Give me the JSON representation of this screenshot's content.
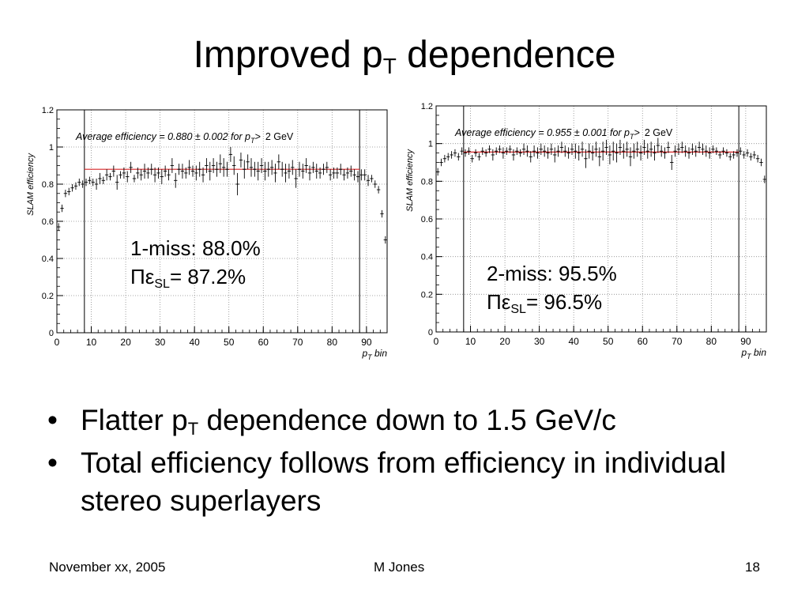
{
  "slide": {
    "title_main": "Improved p",
    "title_sub": "T",
    "title_rest": " dependence",
    "bullets": [
      {
        "pre": "Flatter p",
        "sub": "T",
        "post": " dependence down to 1.5 GeV/c"
      },
      {
        "pre": "Total efficiency follows from efficiency in individual stereo superlayers",
        "sub": "",
        "post": ""
      }
    ],
    "bullet_glyph": "•",
    "footer": {
      "date": "November xx, 2005",
      "author": "M Jones",
      "page": "18"
    }
  },
  "overlays": [
    {
      "line1": "1-miss: 88.0%",
      "line2_pre": "Πε",
      "line2_sub": "SL",
      "line2_post": "= 87.2%"
    },
    {
      "line1": "2-miss: 95.5%",
      "line2_pre": "Πε",
      "line2_sub": "SL",
      "line2_post": "= 96.5%"
    }
  ],
  "colors": {
    "fit_line": "#d62728",
    "points": "#000000",
    "grid": "#8a8a8a"
  },
  "chart_data": [
    {
      "type": "scatter",
      "ylabel": "SLAM efficiency",
      "xlabel": "p_T bin",
      "xlim": [
        0,
        96
      ],
      "ylim": [
        0,
        1.2
      ],
      "xticks": [
        0,
        10,
        20,
        30,
        40,
        50,
        60,
        70,
        80,
        90
      ],
      "yticks": [
        0,
        0.2,
        0.4,
        0.6,
        0.8,
        1,
        1.2
      ],
      "grid": true,
      "annotation": {
        "pre": "Average efficiency = 0.880 ± 0.002 for p",
        "sub": "T",
        "post": ">",
        "tail": "2 GeV"
      },
      "fit": {
        "value": 0.88,
        "x_range": [
          8,
          88
        ]
      },
      "vlines": [
        8,
        88
      ],
      "points": {
        "x": [
          0,
          1,
          2,
          3,
          4,
          5,
          6,
          7,
          8,
          9,
          10,
          11,
          12,
          13,
          14,
          15,
          16,
          17,
          18,
          19,
          20,
          21,
          22,
          23,
          24,
          25,
          26,
          27,
          28,
          29,
          30,
          31,
          32,
          33,
          34,
          35,
          36,
          37,
          38,
          39,
          40,
          41,
          42,
          43,
          44,
          45,
          46,
          47,
          48,
          49,
          50,
          51,
          52,
          53,
          54,
          55,
          56,
          57,
          58,
          59,
          60,
          61,
          62,
          63,
          64,
          65,
          66,
          67,
          68,
          69,
          70,
          71,
          72,
          73,
          74,
          75,
          76,
          77,
          78,
          79,
          80,
          81,
          82,
          83,
          84,
          85,
          86,
          87,
          88,
          89,
          90,
          91,
          92,
          93,
          94,
          95
        ],
        "y": [
          0.57,
          0.67,
          0.75,
          0.76,
          0.78,
          0.79,
          0.81,
          0.8,
          0.81,
          0.82,
          0.81,
          0.8,
          0.83,
          0.82,
          0.85,
          0.84,
          0.87,
          0.81,
          0.85,
          0.86,
          0.84,
          0.89,
          0.83,
          0.86,
          0.85,
          0.87,
          0.86,
          0.88,
          0.85,
          0.86,
          0.84,
          0.87,
          0.85,
          0.9,
          0.82,
          0.88,
          0.87,
          0.86,
          0.89,
          0.87,
          0.86,
          0.88,
          0.85,
          0.9,
          0.87,
          0.9,
          0.88,
          0.91,
          0.89,
          0.88,
          0.96,
          0.9,
          0.8,
          0.93,
          0.88,
          0.92,
          0.89,
          0.88,
          0.87,
          0.9,
          0.87,
          0.88,
          0.89,
          0.86,
          0.92,
          0.88,
          0.86,
          0.87,
          0.89,
          0.83,
          0.88,
          0.87,
          0.9,
          0.86,
          0.89,
          0.87,
          0.86,
          0.88,
          0.89,
          0.85,
          0.86,
          0.86,
          0.88,
          0.85,
          0.86,
          0.87,
          0.85,
          0.84,
          0.85,
          0.85,
          0.82,
          0.83,
          0.8,
          0.77,
          0.64,
          0.5
        ],
        "err": [
          0.02,
          0.02,
          0.02,
          0.02,
          0.02,
          0.02,
          0.02,
          0.02,
          0.02,
          0.02,
          0.02,
          0.03,
          0.03,
          0.02,
          0.03,
          0.02,
          0.03,
          0.04,
          0.02,
          0.03,
          0.03,
          0.03,
          0.02,
          0.03,
          0.03,
          0.04,
          0.03,
          0.03,
          0.04,
          0.03,
          0.04,
          0.03,
          0.03,
          0.04,
          0.04,
          0.03,
          0.04,
          0.03,
          0.04,
          0.03,
          0.04,
          0.04,
          0.04,
          0.04,
          0.05,
          0.04,
          0.04,
          0.05,
          0.05,
          0.04,
          0.04,
          0.05,
          0.06,
          0.04,
          0.05,
          0.04,
          0.05,
          0.04,
          0.05,
          0.04,
          0.05,
          0.04,
          0.04,
          0.05,
          0.04,
          0.04,
          0.05,
          0.04,
          0.04,
          0.05,
          0.04,
          0.04,
          0.04,
          0.04,
          0.03,
          0.04,
          0.03,
          0.03,
          0.03,
          0.03,
          0.03,
          0.03,
          0.03,
          0.03,
          0.03,
          0.03,
          0.03,
          0.03,
          0.03,
          0.03,
          0.03,
          0.02,
          0.02,
          0.02,
          0.02,
          0.02
        ]
      }
    },
    {
      "type": "scatter",
      "ylabel": "SLAM efficiency",
      "xlabel": "p_T bin",
      "xlim": [
        0,
        96
      ],
      "ylim": [
        0,
        1.2
      ],
      "xticks": [
        0,
        10,
        20,
        30,
        40,
        50,
        60,
        70,
        80,
        90
      ],
      "yticks": [
        0,
        0.2,
        0.4,
        0.6,
        0.8,
        1,
        1.2
      ],
      "grid": true,
      "annotation": {
        "pre": "Average efficiency = 0.955 ± 0.001 for p",
        "sub": "T",
        "post": ">",
        "tail": "2 GeV"
      },
      "fit": {
        "value": 0.955,
        "x_range": [
          8,
          88
        ]
      },
      "vlines": [
        8,
        88
      ],
      "points": {
        "x": [
          0,
          1,
          2,
          3,
          4,
          5,
          6,
          7,
          8,
          9,
          10,
          11,
          12,
          13,
          14,
          15,
          16,
          17,
          18,
          19,
          20,
          21,
          22,
          23,
          24,
          25,
          26,
          27,
          28,
          29,
          30,
          31,
          32,
          33,
          34,
          35,
          36,
          37,
          38,
          39,
          40,
          41,
          42,
          43,
          44,
          45,
          46,
          47,
          48,
          49,
          50,
          51,
          52,
          53,
          54,
          55,
          56,
          57,
          58,
          59,
          60,
          61,
          62,
          63,
          64,
          65,
          66,
          67,
          68,
          69,
          70,
          71,
          72,
          73,
          74,
          75,
          76,
          77,
          78,
          79,
          80,
          81,
          82,
          83,
          84,
          85,
          86,
          87,
          88,
          89,
          90,
          91,
          92,
          93,
          94,
          95
        ],
        "y": [
          0.85,
          0.9,
          0.92,
          0.93,
          0.94,
          0.95,
          0.93,
          0.96,
          0.95,
          0.96,
          0.92,
          0.95,
          0.93,
          0.96,
          0.95,
          0.97,
          0.94,
          0.96,
          0.97,
          0.95,
          0.96,
          0.97,
          0.94,
          0.96,
          0.95,
          0.97,
          0.96,
          0.93,
          0.96,
          0.95,
          0.97,
          0.96,
          0.95,
          0.97,
          0.94,
          0.96,
          0.98,
          0.96,
          0.95,
          0.97,
          0.96,
          0.95,
          0.97,
          0.92,
          0.96,
          0.95,
          0.97,
          0.93,
          0.96,
          0.98,
          0.94,
          0.96,
          0.95,
          0.98,
          0.96,
          0.97,
          0.93,
          0.96,
          0.97,
          0.95,
          0.98,
          0.96,
          0.97,
          0.95,
          0.99,
          0.96,
          0.95,
          0.98,
          0.9,
          0.96,
          0.97,
          0.98,
          0.96,
          0.95,
          0.97,
          0.96,
          0.98,
          0.97,
          0.96,
          0.95,
          0.97,
          0.96,
          0.94,
          0.96,
          0.95,
          0.93,
          0.94,
          0.95,
          0.96,
          0.94,
          0.95,
          0.93,
          0.94,
          0.92,
          0.9,
          0.81
        ],
        "err": [
          0.02,
          0.02,
          0.02,
          0.02,
          0.02,
          0.02,
          0.02,
          0.02,
          0.02,
          0.02,
          0.02,
          0.02,
          0.02,
          0.02,
          0.02,
          0.02,
          0.03,
          0.02,
          0.02,
          0.03,
          0.02,
          0.02,
          0.03,
          0.02,
          0.02,
          0.03,
          0.03,
          0.03,
          0.03,
          0.03,
          0.03,
          0.03,
          0.03,
          0.03,
          0.04,
          0.03,
          0.03,
          0.03,
          0.03,
          0.03,
          0.04,
          0.04,
          0.04,
          0.05,
          0.04,
          0.04,
          0.04,
          0.05,
          0.05,
          0.04,
          0.05,
          0.05,
          0.05,
          0.04,
          0.04,
          0.04,
          0.05,
          0.04,
          0.04,
          0.04,
          0.04,
          0.04,
          0.04,
          0.04,
          0.04,
          0.03,
          0.03,
          0.03,
          0.04,
          0.03,
          0.03,
          0.03,
          0.03,
          0.03,
          0.03,
          0.03,
          0.03,
          0.03,
          0.03,
          0.03,
          0.02,
          0.02,
          0.02,
          0.02,
          0.02,
          0.02,
          0.02,
          0.02,
          0.02,
          0.02,
          0.02,
          0.02,
          0.02,
          0.02,
          0.02,
          0.02
        ]
      }
    }
  ]
}
